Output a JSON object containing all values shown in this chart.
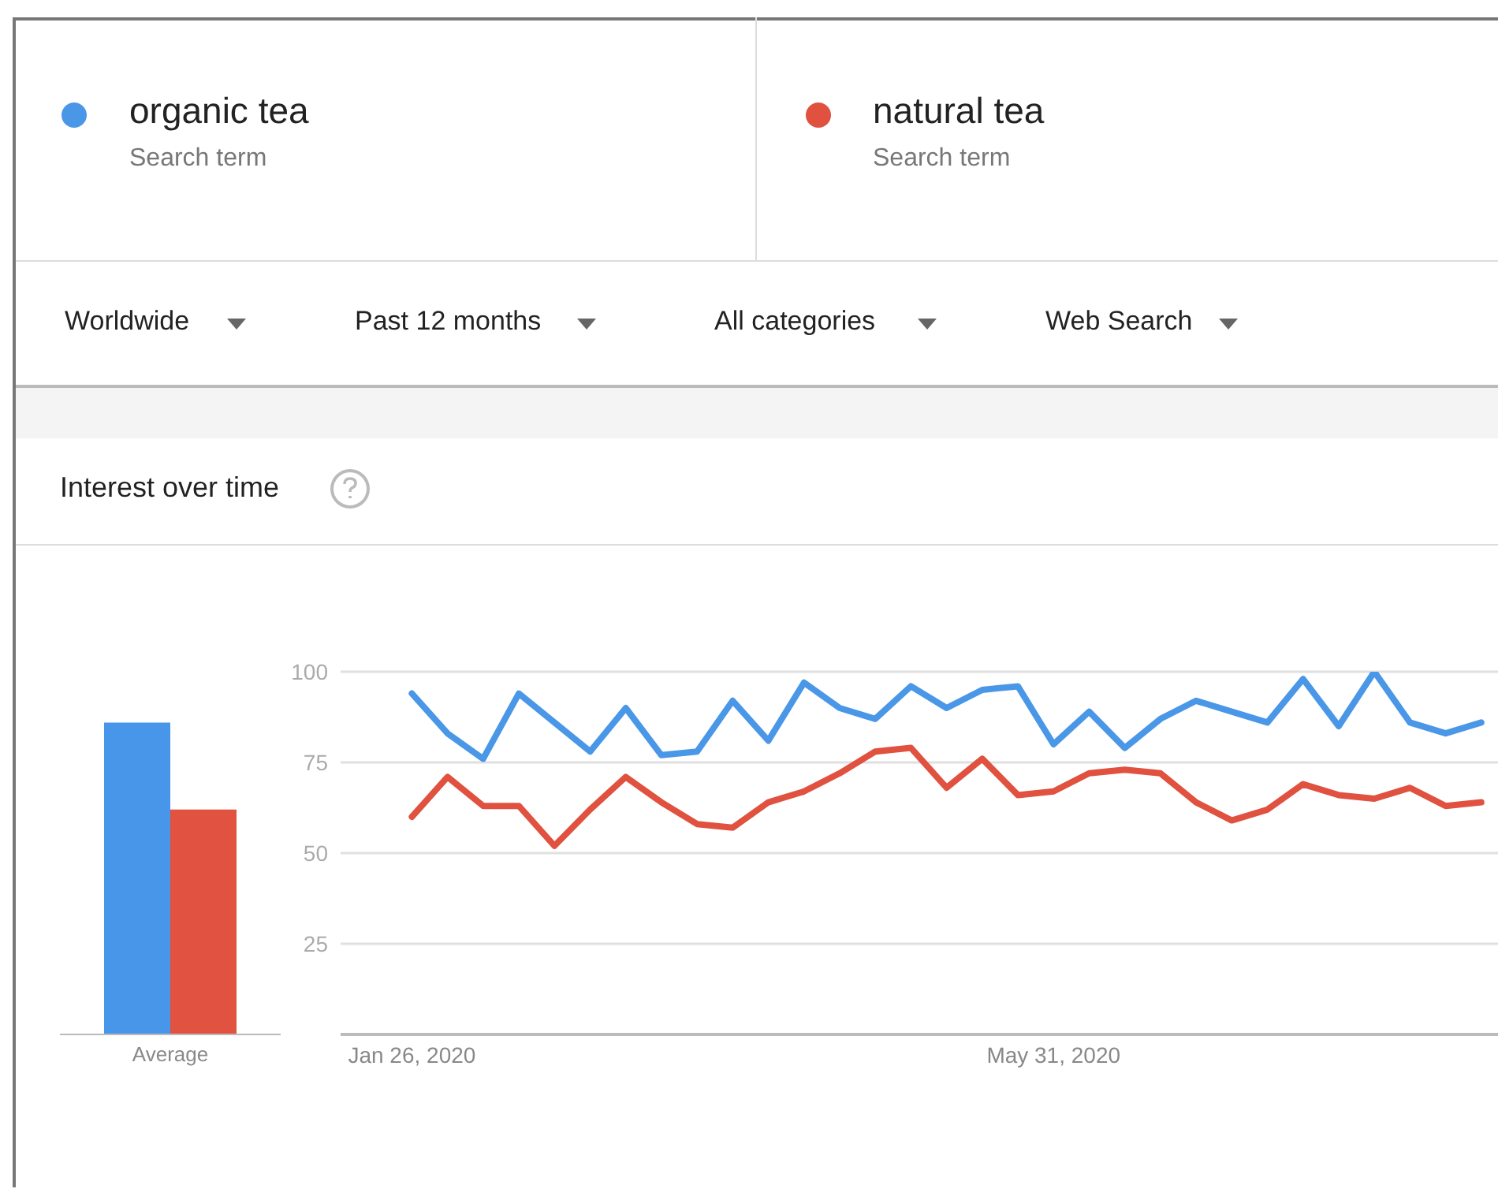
{
  "chart_data": [
    {
      "type": "bar",
      "title": "Interest over time",
      "categories": [
        "Average"
      ],
      "series": [
        {
          "color": "#4896ea",
          "values": [
            86
          ]
        },
        {
          "color": "#e15241",
          "values": [
            62
          ]
        }
      ],
      "ylim": [
        0,
        100
      ],
      "tick_labels": "x",
      "grid": false
    },
    {
      "type": "line",
      "x": [
        "2020-01-26",
        "2020-02-02",
        "2020-02-09",
        "2020-02-16",
        "2020-02-23",
        "2020-03-01",
        "2020-03-08",
        "2020-03-15",
        "2020-03-22",
        "2020-03-29",
        "2020-04-05",
        "2020-04-12",
        "2020-04-19",
        "2020-04-26",
        "2020-05-03",
        "2020-05-10",
        "2020-05-17",
        "2020-05-24",
        "2020-05-31",
        "2020-06-07",
        "2020-06-14",
        "2020-06-21",
        "2020-06-28",
        "2020-07-05",
        "2020-07-12",
        "2020-07-19",
        "2020-07-26",
        "2020-08-02",
        "2020-08-09",
        "2020-08-16",
        "2020-08-23"
      ],
      "series": [
        {
          "name": "organic tea",
          "color": "#4a97e8",
          "values": [
            94,
            83,
            76,
            94,
            86,
            78,
            90,
            77,
            78,
            92,
            81,
            97,
            90,
            87,
            96,
            90,
            95,
            96,
            80,
            89,
            79,
            87,
            92,
            89,
            86,
            98,
            85,
            100,
            86,
            83,
            86
          ]
        },
        {
          "name": "natural tea",
          "color": "#e0513f",
          "values": [
            60,
            71,
            63,
            63,
            52,
            62,
            71,
            64,
            58,
            57,
            64,
            67,
            72,
            78,
            79,
            68,
            76,
            66,
            67,
            72,
            73,
            72,
            64,
            59,
            62,
            69,
            66,
            65,
            68,
            63,
            64
          ]
        }
      ],
      "xlim": [
        "2020-01-12",
        "2020-08-30"
      ],
      "xticks": [
        {
          "value": "2020-01-26",
          "label": "Jan 26, 2020"
        },
        {
          "value": "2020-05-31",
          "label": "May 31, 2020"
        }
      ],
      "ylim": [
        0,
        100
      ],
      "yticks": [
        25,
        50,
        75,
        100
      ],
      "grid": "y",
      "legend": "top",
      "marker": "none",
      "line_style": "solid",
      "annotations": [
        "Search term",
        "Search term",
        "Worldwide",
        "Past 12 months",
        "All categories",
        "Web Search"
      ]
    }
  ]
}
